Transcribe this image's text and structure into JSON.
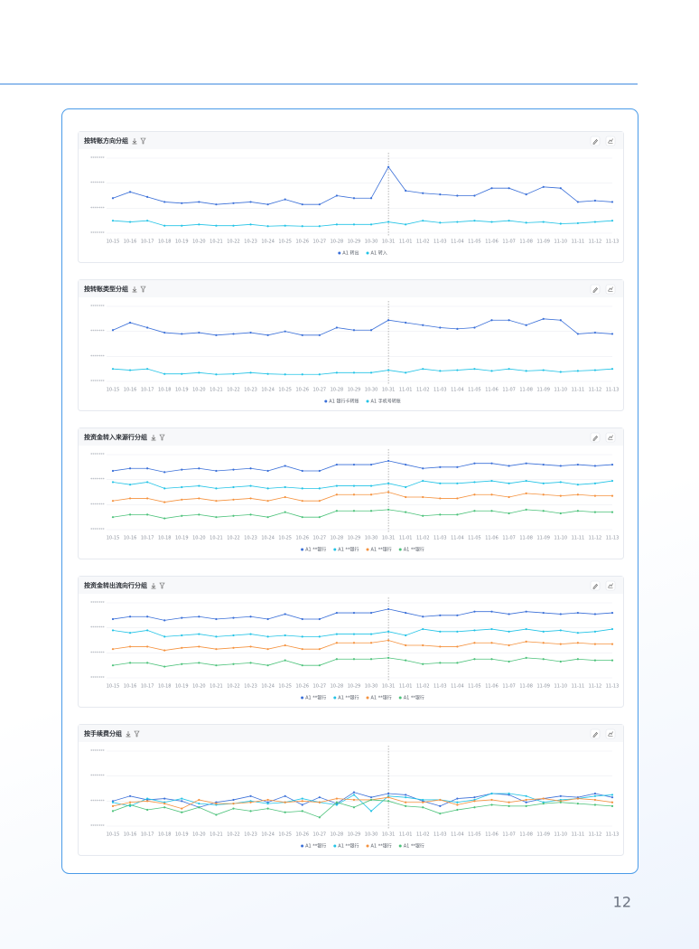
{
  "page_number": "12",
  "chart_data": [
    {
      "type": "line",
      "title": "按转账方向分组",
      "categories": [
        "10-15",
        "10-16",
        "10-17",
        "10-18",
        "10-19",
        "10-20",
        "10-21",
        "10-22",
        "10-23",
        "10-24",
        "10-25",
        "10-26",
        "10-27",
        "10-28",
        "10-29",
        "10-30",
        "10-31",
        "11-01",
        "11-02",
        "11-03",
        "11-04",
        "11-05",
        "11-06",
        "11-07",
        "11-08",
        "11-09",
        "11-10",
        "11-11",
        "11-12",
        "11-13"
      ],
      "ylim": [
        0,
        3
      ],
      "yticks": [
        {
          "value": 0,
          "label": "*******"
        },
        {
          "value": 1,
          "label": "*******"
        },
        {
          "value": 2,
          "label": "*******"
        },
        {
          "value": 3,
          "label": "*******"
        }
      ],
      "reference_line": "10-31",
      "series": [
        {
          "name": "A1 转出",
          "color": "#3a6fd8",
          "values": [
            1.4,
            1.65,
            1.45,
            1.25,
            1.2,
            1.25,
            1.15,
            1.2,
            1.25,
            1.15,
            1.35,
            1.15,
            1.15,
            1.5,
            1.4,
            1.4,
            2.65,
            1.7,
            1.6,
            1.55,
            1.5,
            1.5,
            1.8,
            1.8,
            1.55,
            1.85,
            1.8,
            1.25,
            1.3,
            1.25
          ]
        },
        {
          "name": "A1 转入",
          "color": "#22c3e6",
          "values": [
            0.5,
            0.45,
            0.5,
            0.3,
            0.3,
            0.35,
            0.3,
            0.3,
            0.35,
            0.28,
            0.3,
            0.28,
            0.28,
            0.35,
            0.35,
            0.35,
            0.45,
            0.35,
            0.5,
            0.42,
            0.45,
            0.5,
            0.45,
            0.5,
            0.42,
            0.45,
            0.38,
            0.4,
            0.45,
            0.5
          ]
        }
      ]
    },
    {
      "type": "line",
      "title": "按转账类型分组",
      "categories": [
        "10-15",
        "10-16",
        "10-17",
        "10-18",
        "10-19",
        "10-20",
        "10-21",
        "10-22",
        "10-23",
        "10-24",
        "10-25",
        "10-26",
        "10-27",
        "10-28",
        "10-29",
        "10-30",
        "10-31",
        "11-01",
        "11-02",
        "11-03",
        "11-04",
        "11-05",
        "11-06",
        "11-07",
        "11-08",
        "11-09",
        "11-10",
        "11-11",
        "11-12",
        "11-13"
      ],
      "ylim": [
        0,
        3
      ],
      "yticks": [
        {
          "value": 0,
          "label": "*******"
        },
        {
          "value": 1,
          "label": "*******"
        },
        {
          "value": 2,
          "label": "*******"
        },
        {
          "value": 3,
          "label": "*******"
        }
      ],
      "reference_line": "10-31",
      "series": [
        {
          "name": "A1 银行卡转账",
          "color": "#3a6fd8",
          "values": [
            2.05,
            2.35,
            2.15,
            1.95,
            1.9,
            1.95,
            1.85,
            1.9,
            1.95,
            1.85,
            2.0,
            1.85,
            1.85,
            2.15,
            2.05,
            2.05,
            2.45,
            2.35,
            2.25,
            2.15,
            2.1,
            2.15,
            2.45,
            2.45,
            2.25,
            2.5,
            2.45,
            1.9,
            1.95,
            1.9
          ]
        },
        {
          "name": "A1 手机号转账",
          "color": "#22c3e6",
          "values": [
            0.5,
            0.45,
            0.5,
            0.3,
            0.3,
            0.35,
            0.28,
            0.3,
            0.35,
            0.3,
            0.28,
            0.28,
            0.28,
            0.35,
            0.35,
            0.35,
            0.45,
            0.35,
            0.5,
            0.42,
            0.45,
            0.5,
            0.42,
            0.5,
            0.42,
            0.45,
            0.38,
            0.42,
            0.45,
            0.5
          ]
        }
      ]
    },
    {
      "type": "line",
      "title": "按资金转入来源行分组",
      "categories": [
        "10-15",
        "10-16",
        "10-17",
        "10-18",
        "10-19",
        "10-20",
        "10-21",
        "10-22",
        "10-23",
        "10-24",
        "10-25",
        "10-26",
        "10-27",
        "10-28",
        "10-29",
        "10-30",
        "10-31",
        "11-01",
        "11-02",
        "11-03",
        "11-04",
        "11-05",
        "11-06",
        "11-07",
        "11-08",
        "11-09",
        "11-10",
        "11-11",
        "11-12",
        "11-13"
      ],
      "ylim": [
        0,
        3
      ],
      "yticks": [
        {
          "value": 0,
          "label": "*******"
        },
        {
          "value": 1,
          "label": "*******"
        },
        {
          "value": 2,
          "label": "*******"
        },
        {
          "value": 3,
          "label": "*******"
        }
      ],
      "reference_line": "10-31",
      "series": [
        {
          "name": "A1 **银行",
          "color": "#3a6fd8",
          "values": [
            2.35,
            2.45,
            2.45,
            2.3,
            2.4,
            2.45,
            2.35,
            2.4,
            2.45,
            2.35,
            2.55,
            2.35,
            2.35,
            2.6,
            2.6,
            2.6,
            2.75,
            2.6,
            2.45,
            2.5,
            2.5,
            2.65,
            2.65,
            2.55,
            2.65,
            2.6,
            2.55,
            2.6,
            2.55,
            2.6
          ]
        },
        {
          "name": "A1 **银行",
          "color": "#22c3e6",
          "values": [
            1.9,
            1.8,
            1.9,
            1.65,
            1.7,
            1.75,
            1.65,
            1.7,
            1.75,
            1.65,
            1.7,
            1.65,
            1.65,
            1.75,
            1.75,
            1.75,
            1.85,
            1.7,
            1.95,
            1.85,
            1.85,
            1.9,
            1.95,
            1.85,
            1.95,
            1.85,
            1.9,
            1.8,
            1.85,
            1.95
          ]
        },
        {
          "name": "A1 **银行",
          "color": "#f5923e",
          "values": [
            1.15,
            1.25,
            1.25,
            1.1,
            1.2,
            1.25,
            1.15,
            1.2,
            1.25,
            1.15,
            1.3,
            1.15,
            1.15,
            1.4,
            1.4,
            1.4,
            1.5,
            1.3,
            1.3,
            1.25,
            1.25,
            1.4,
            1.4,
            1.3,
            1.45,
            1.4,
            1.35,
            1.4,
            1.35,
            1.35
          ]
        },
        {
          "name": "A1 **银行",
          "color": "#4cc27a",
          "values": [
            0.5,
            0.6,
            0.6,
            0.45,
            0.55,
            0.6,
            0.5,
            0.55,
            0.6,
            0.5,
            0.7,
            0.5,
            0.5,
            0.75,
            0.75,
            0.75,
            0.8,
            0.7,
            0.55,
            0.6,
            0.6,
            0.75,
            0.75,
            0.65,
            0.8,
            0.75,
            0.65,
            0.75,
            0.7,
            0.7
          ]
        }
      ]
    },
    {
      "type": "line",
      "title": "按资金转出流向行分组",
      "categories": [
        "10-15",
        "10-16",
        "10-17",
        "10-18",
        "10-19",
        "10-20",
        "10-21",
        "10-22",
        "10-23",
        "10-24",
        "10-25",
        "10-26",
        "10-27",
        "10-28",
        "10-29",
        "10-30",
        "10-31",
        "11-01",
        "11-02",
        "11-03",
        "11-04",
        "11-05",
        "11-06",
        "11-07",
        "11-08",
        "11-09",
        "11-10",
        "11-11",
        "11-12",
        "11-13"
      ],
      "ylim": [
        0,
        3
      ],
      "yticks": [
        {
          "value": 0,
          "label": "*******"
        },
        {
          "value": 1,
          "label": "*******"
        },
        {
          "value": 2,
          "label": "*******"
        },
        {
          "value": 3,
          "label": "*******"
        }
      ],
      "reference_line": "10-31",
      "series": [
        {
          "name": "A1 **银行",
          "color": "#3a6fd8",
          "values": [
            2.35,
            2.45,
            2.45,
            2.3,
            2.4,
            2.45,
            2.35,
            2.4,
            2.45,
            2.35,
            2.55,
            2.35,
            2.35,
            2.6,
            2.6,
            2.6,
            2.75,
            2.6,
            2.45,
            2.5,
            2.5,
            2.65,
            2.65,
            2.55,
            2.65,
            2.6,
            2.55,
            2.6,
            2.55,
            2.6
          ]
        },
        {
          "name": "A1 **银行",
          "color": "#22c3e6",
          "values": [
            1.9,
            1.8,
            1.9,
            1.65,
            1.7,
            1.75,
            1.65,
            1.7,
            1.75,
            1.65,
            1.7,
            1.65,
            1.65,
            1.75,
            1.75,
            1.75,
            1.85,
            1.7,
            1.95,
            1.85,
            1.85,
            1.9,
            1.95,
            1.85,
            1.95,
            1.85,
            1.9,
            1.8,
            1.85,
            1.95
          ]
        },
        {
          "name": "A1 **银行",
          "color": "#f5923e",
          "values": [
            1.15,
            1.25,
            1.25,
            1.1,
            1.2,
            1.25,
            1.15,
            1.2,
            1.25,
            1.15,
            1.3,
            1.15,
            1.15,
            1.4,
            1.4,
            1.4,
            1.5,
            1.3,
            1.3,
            1.25,
            1.25,
            1.4,
            1.4,
            1.3,
            1.45,
            1.4,
            1.35,
            1.4,
            1.35,
            1.35
          ]
        },
        {
          "name": "A1 **银行",
          "color": "#4cc27a",
          "values": [
            0.5,
            0.6,
            0.6,
            0.45,
            0.55,
            0.6,
            0.5,
            0.55,
            0.6,
            0.5,
            0.7,
            0.5,
            0.5,
            0.75,
            0.75,
            0.75,
            0.8,
            0.7,
            0.55,
            0.6,
            0.6,
            0.75,
            0.75,
            0.65,
            0.8,
            0.75,
            0.65,
            0.75,
            0.7,
            0.7
          ]
        }
      ]
    },
    {
      "type": "line",
      "title": "按手续费分组",
      "categories": [
        "10-15",
        "10-16",
        "10-17",
        "10-18",
        "10-19",
        "10-20",
        "10-21",
        "10-22",
        "10-23",
        "10-24",
        "10-25",
        "10-26",
        "10-27",
        "10-28",
        "10-29",
        "10-30",
        "10-31",
        "11-01",
        "11-02",
        "11-03",
        "11-04",
        "11-05",
        "11-06",
        "11-07",
        "11-08",
        "11-09",
        "11-10",
        "11-11",
        "11-12",
        "11-13"
      ],
      "ylim": [
        0,
        3
      ],
      "yticks": [
        {
          "value": 0,
          "label": "*******"
        },
        {
          "value": 1,
          "label": "*******"
        },
        {
          "value": 2,
          "label": "*******"
        },
        {
          "value": 3,
          "label": "*******"
        }
      ],
      "reference_line": "10-31",
      "series": [
        {
          "name": "A1 **银行",
          "color": "#3a6fd8",
          "values": [
            1.0,
            1.2,
            1.05,
            1.1,
            1.0,
            0.75,
            0.95,
            1.05,
            1.2,
            0.95,
            1.2,
            0.85,
            1.15,
            0.9,
            1.35,
            1.15,
            1.3,
            1.25,
            1.0,
            0.8,
            1.1,
            1.15,
            1.3,
            1.25,
            0.95,
            1.1,
            1.2,
            1.15,
            1.3,
            1.15
          ]
        },
        {
          "name": "A1 **银行",
          "color": "#22c3e6",
          "values": [
            0.95,
            0.8,
            1.1,
            0.95,
            1.1,
            0.9,
            0.85,
            0.9,
            1.0,
            0.9,
            0.95,
            1.1,
            0.95,
            0.85,
            1.25,
            0.6,
            1.2,
            1.15,
            1.05,
            1.05,
            0.95,
            1.05,
            1.3,
            1.3,
            1.2,
            0.95,
            1.05,
            1.1,
            1.2,
            1.25
          ]
        },
        {
          "name": "A1 **银行",
          "color": "#f5923e",
          "values": [
            0.8,
            0.95,
            1.0,
            0.9,
            0.7,
            1.05,
            0.9,
            0.9,
            0.95,
            1.05,
            0.95,
            1.0,
            0.95,
            1.1,
            1.05,
            1.05,
            1.15,
            0.95,
            0.95,
            1.05,
            0.85,
            1.0,
            1.05,
            0.95,
            1.05,
            1.1,
            1.0,
            1.1,
            1.05,
            0.95
          ]
        },
        {
          "name": "A1 **银行",
          "color": "#4cc27a",
          "values": [
            0.6,
            0.85,
            0.65,
            0.75,
            0.55,
            0.75,
            0.45,
            0.7,
            0.6,
            0.7,
            0.55,
            0.6,
            0.35,
            0.95,
            0.75,
            1.05,
            1.0,
            0.8,
            0.75,
            0.5,
            0.65,
            0.75,
            0.85,
            0.8,
            0.8,
            0.9,
            0.95,
            0.9,
            0.85,
            0.8
          ]
        }
      ]
    }
  ]
}
